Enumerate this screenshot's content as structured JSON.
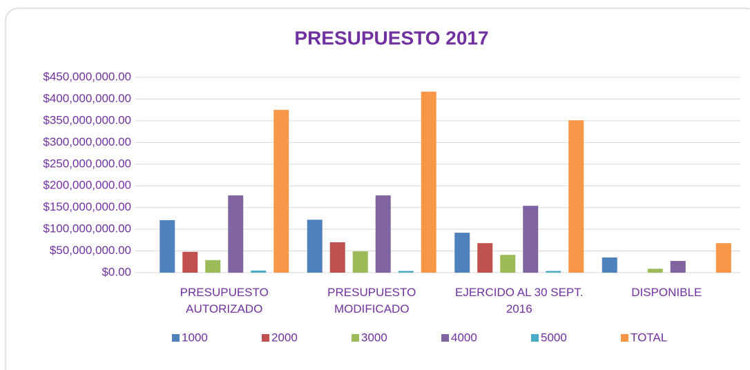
{
  "chart_data": {
    "type": "bar",
    "title": "PRESUPUESTO 2017",
    "categories": [
      "PRESUPUESTO AUTORIZADO",
      "PRESUPUESTO MODIFICADO",
      "EJERCIDO AL 30 SEPT. 2016",
      "DISPONIBLE"
    ],
    "series": [
      {
        "name": "1000",
        "color": "#4f81bd",
        "values": [
          121000000,
          122000000,
          92000000,
          35000000
        ]
      },
      {
        "name": "2000",
        "color": "#c0504d",
        "values": [
          48000000,
          70000000,
          68000000,
          0
        ]
      },
      {
        "name": "3000",
        "color": "#9bbb59",
        "values": [
          29000000,
          49000000,
          41000000,
          9000000
        ]
      },
      {
        "name": "4000",
        "color": "#8064a2",
        "values": [
          178000000,
          178000000,
          154000000,
          27000000
        ]
      },
      {
        "name": "5000",
        "color": "#4bacc6",
        "values": [
          5000000,
          4000000,
          4000000,
          0
        ]
      },
      {
        "name": "TOTAL",
        "color": "#f79646",
        "values": [
          375000000,
          417000000,
          351000000,
          68000000
        ]
      }
    ],
    "ylim": [
      0,
      450000000
    ],
    "yticks": [
      {
        "value": 0,
        "label": "$0.00"
      },
      {
        "value": 50000000,
        "label": "$50,000,000.00"
      },
      {
        "value": 100000000,
        "label": "$100,000,000.00"
      },
      {
        "value": 150000000,
        "label": "$150,000,000.00"
      },
      {
        "value": 200000000,
        "label": "$200,000,000.00"
      },
      {
        "value": 250000000,
        "label": "$250,000,000.00"
      },
      {
        "value": 300000000,
        "label": "$300,000,000.00"
      },
      {
        "value": 350000000,
        "label": "$350,000,000.00"
      },
      {
        "value": 400000000,
        "label": "$400,000,000.00"
      },
      {
        "value": 450000000,
        "label": "$450,000,000.00"
      }
    ],
    "grid": true,
    "legend": "bottom"
  }
}
